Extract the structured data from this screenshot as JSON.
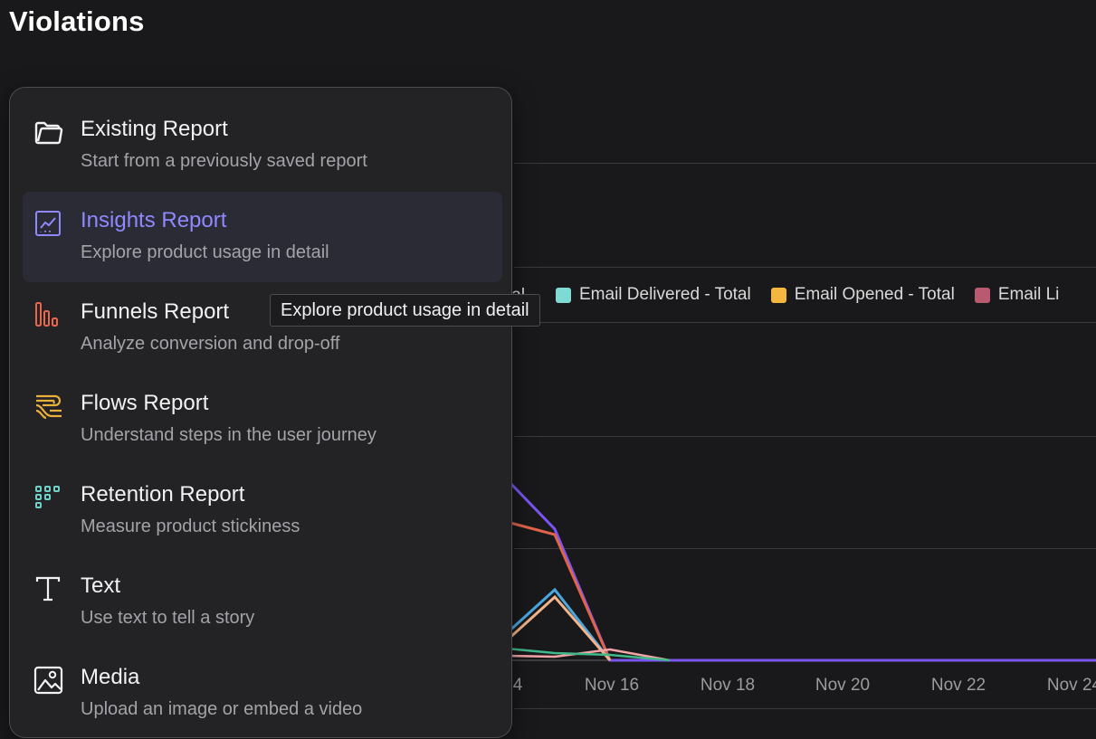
{
  "page": {
    "title": "Violations"
  },
  "menu": {
    "items": [
      {
        "label": "Existing Report",
        "description": "Start from a previously saved report",
        "icon": "folder-icon"
      },
      {
        "label": "Insights Report",
        "description": "Explore product usage in detail",
        "icon": "insights-chart-icon",
        "active": true
      },
      {
        "label": "Funnels Report",
        "description": "Analyze conversion and drop-off",
        "icon": "funnel-bars-icon"
      },
      {
        "label": "Flows Report",
        "description": "Understand steps in the user journey",
        "icon": "flows-icon"
      },
      {
        "label": "Retention Report",
        "description": "Measure product stickiness",
        "icon": "retention-grid-icon"
      },
      {
        "label": "Text",
        "description": "Use text to tell a story",
        "icon": "text-icon"
      },
      {
        "label": "Media",
        "description": "Upload an image or embed a video",
        "icon": "media-image-icon"
      }
    ]
  },
  "tooltip": {
    "text": "Explore product usage in detail"
  },
  "chart": {
    "legend_clipped": "tal",
    "legend": [
      {
        "label": "Email Delivered - Total",
        "color": "#7fdad3"
      },
      {
        "label": "Email Opened - Total",
        "color": "#f3b63f"
      },
      {
        "label": "Email Li",
        "color": "#b95a70"
      }
    ],
    "x_labels": [
      "4",
      "Nov 16",
      "Nov 18",
      "Nov 20",
      "Nov 22",
      "Nov 24"
    ],
    "colors": {
      "purple": "#7a55f2",
      "red": "#e0644a",
      "blue": "#49a8e0",
      "peach": "#f2b48a",
      "green": "#3fb88a",
      "pink": "#f3a6a6"
    }
  }
}
